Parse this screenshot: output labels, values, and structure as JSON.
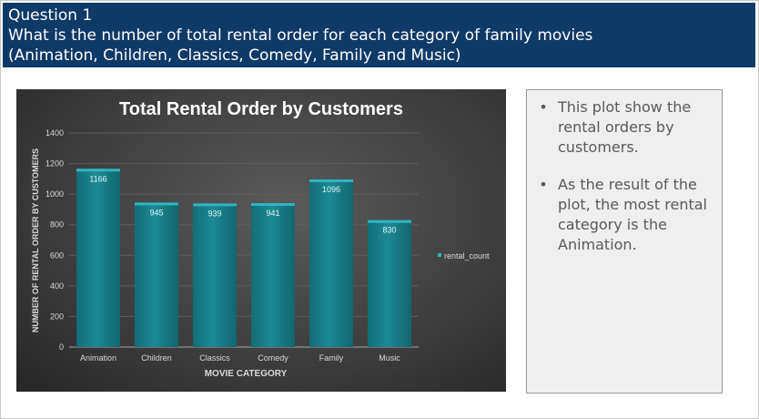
{
  "header": {
    "line1": "Question 1",
    "line2": "What is the number of  total rental order for each category of family movies",
    "line3": "(Animation, Children, Classics, Comedy, Family and Music)"
  },
  "notes": {
    "items": [
      {
        "bullet": "•",
        "text": "This plot show  the rental orders by customers."
      },
      {
        "bullet": "•",
        "text": "As the result of the plot, the most rental category is the Animation."
      }
    ]
  },
  "colors": {
    "bar": "#1a8a94",
    "bar_top": "#2fb5c0",
    "text": "#d9d9d9",
    "grid": "#5e5e5e"
  },
  "chart_data": {
    "type": "bar",
    "title": "Total Rental Order by Customers",
    "xlabel": "MOVIE CATEGORY",
    "ylabel": "NUMBER OF RENTAL ORDER BY CUSTOMERS",
    "categories": [
      "Animation",
      "Children",
      "Classics",
      "Comedy",
      "Family",
      "Music"
    ],
    "series": [
      {
        "name": "rental_count",
        "values": [
          1166,
          945,
          939,
          941,
          1096,
          830
        ]
      }
    ],
    "ylim": [
      0,
      1400
    ],
    "yticks": [
      0,
      200,
      400,
      600,
      800,
      1000,
      1200,
      1400
    ],
    "grid": true,
    "legend": "right"
  }
}
